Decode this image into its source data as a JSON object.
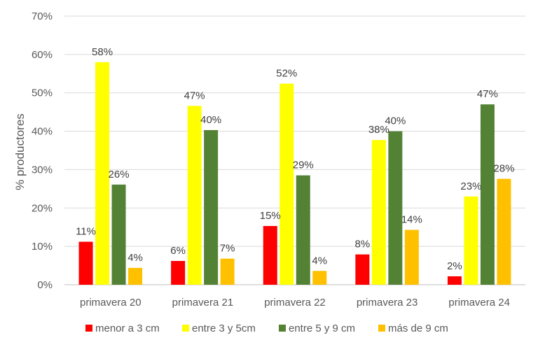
{
  "chart_data": {
    "type": "bar",
    "title": "",
    "xlabel": "",
    "ylabel": "% productores",
    "ylim": [
      0,
      70
    ],
    "yticks": [
      0,
      10,
      20,
      30,
      40,
      50,
      60,
      70
    ],
    "ytick_labels": [
      "0%",
      "10%",
      "20%",
      "30%",
      "40%",
      "50%",
      "60%",
      "70%"
    ],
    "grid": true,
    "legend_position": "bottom",
    "categories": [
      "primavera 20",
      "primavera 21",
      "primavera 22",
      "primavera 23",
      "primavera 24"
    ],
    "series": [
      {
        "name": "menor a 3 cm",
        "color": "#ff0000",
        "values": [
          11.2,
          6.2,
          15.3,
          7.9,
          2.2
        ],
        "labels": [
          "11%",
          "6%",
          "15%",
          "8%",
          "2%"
        ]
      },
      {
        "name": "entre 3 y 5cm",
        "color": "#ffff00",
        "values": [
          58.0,
          46.6,
          52.4,
          37.7,
          23.0
        ],
        "labels": [
          "58%",
          "47%",
          "52%",
          "38%",
          "23%"
        ]
      },
      {
        "name": "entre 5 y 9 cm",
        "color": "#548235",
        "values": [
          26.1,
          40.3,
          28.5,
          40.0,
          47.0
        ],
        "labels": [
          "26%",
          "40%",
          "29%",
          "40%",
          "47%"
        ]
      },
      {
        "name": "más de 9 cm",
        "color": "#ffc000",
        "values": [
          4.4,
          6.8,
          3.6,
          14.3,
          27.6
        ],
        "labels": [
          "4%",
          "7%",
          "4%",
          "14%",
          "28%"
        ]
      }
    ]
  }
}
